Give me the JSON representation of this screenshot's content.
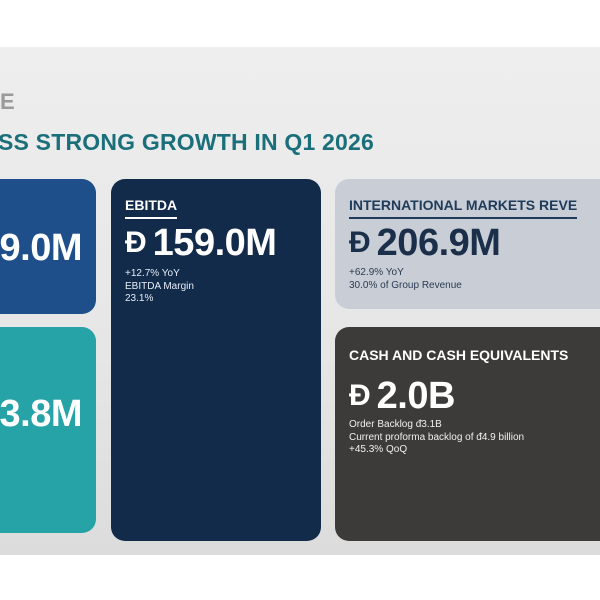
{
  "slide": {
    "corner_mark": "E",
    "headline": "SS STRONG GROWTH IN Q1 2026"
  },
  "colors": {
    "teal_headline": "#1b6f7a",
    "card_blue": "#1e4f8a",
    "card_teal": "#26a3a7",
    "card_navy": "#122b4b",
    "card_light": "#c9ced6",
    "card_dark": "#3d3b3a"
  },
  "cards": {
    "revenue_partial": {
      "value": "9.0M"
    },
    "profit_partial": {
      "value": "3.8M"
    },
    "ebitda": {
      "title": "EBITDA",
      "currency_symbol": "Đ",
      "value": "159.0M",
      "details": [
        "+12.7% YoY",
        "EBITDA Margin",
        "23.1%"
      ]
    },
    "international": {
      "title": "INTERNATIONAL MARKETS REVE",
      "currency_symbol": "Đ",
      "value": "206.9M",
      "details": [
        "+62.9% YoY",
        "30.0% of Group Revenue"
      ]
    },
    "cash": {
      "title": "CASH AND CASH EQUIVALENTS",
      "currency_symbol": "Đ",
      "value": "2.0B",
      "details": [
        "Order Backlog ᵭ3.1B",
        "Current proforma backlog of ᵭ4.9 billion",
        "+45.3% QoQ"
      ]
    }
  }
}
